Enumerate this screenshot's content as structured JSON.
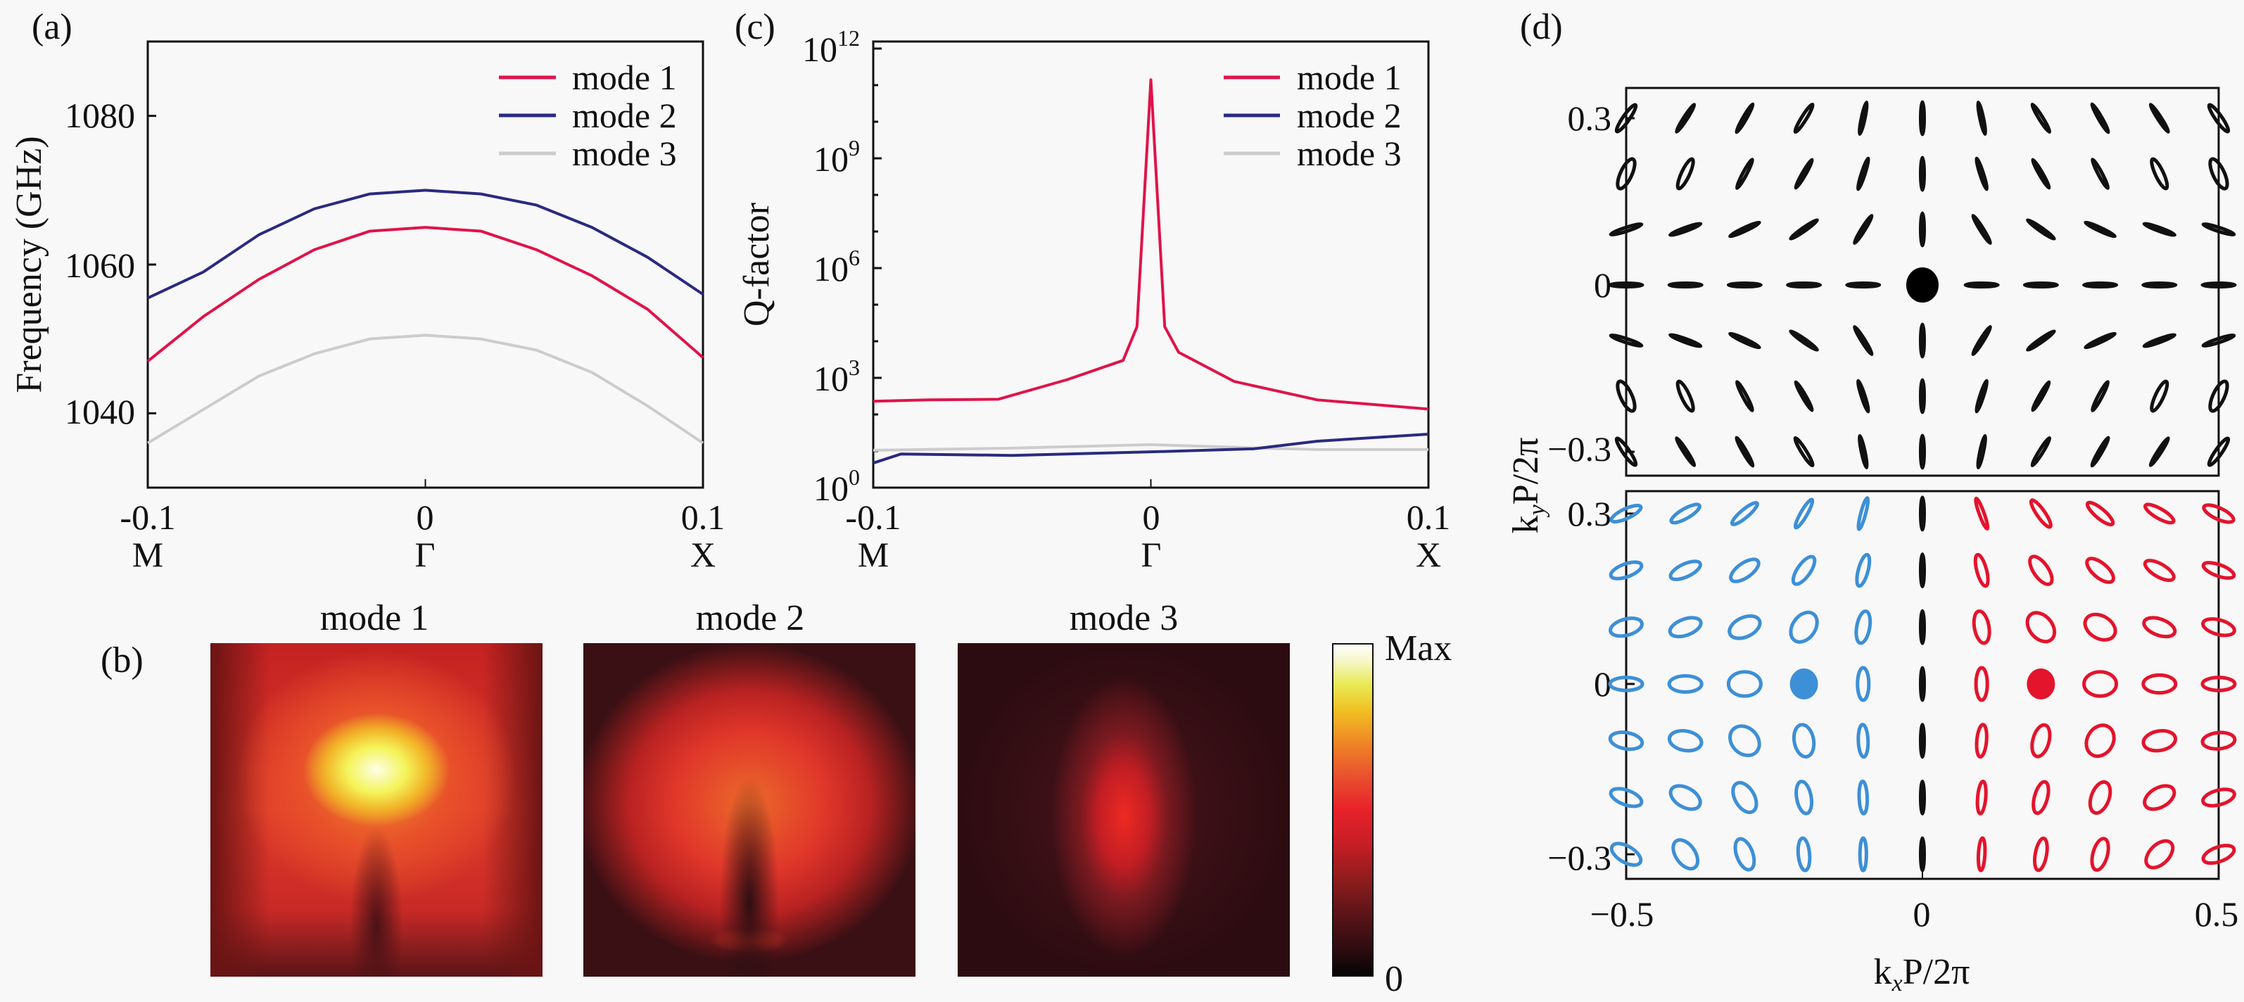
{
  "panel_labels": {
    "a": "(a)",
    "b": "(b)",
    "c": "(c)",
    "d": "(d)"
  },
  "chart_data": [
    {
      "id": "a",
      "type": "line",
      "ylabel": "Frequency (GHz)",
      "xlim": [
        -0.1,
        0.1
      ],
      "ylim": [
        1030,
        1090
      ],
      "xticks": [
        {
          "value": -0.1,
          "label": "-0.1",
          "point": "M"
        },
        {
          "value": 0,
          "label": "0",
          "point": "Γ"
        },
        {
          "value": 0.1,
          "label": "0.1",
          "point": "X"
        }
      ],
      "yticks": [
        {
          "value": 1040,
          "label": "1040"
        },
        {
          "value": 1060,
          "label": "1060"
        },
        {
          "value": 1080,
          "label": "1080"
        }
      ],
      "legend_position": "top-right",
      "x": [
        -0.1,
        -0.08,
        -0.06,
        -0.04,
        -0.02,
        0,
        0.02,
        0.04,
        0.06,
        0.08,
        0.1
      ],
      "series": [
        {
          "name": "mode 1",
          "color": "#e0134a",
          "values": [
            1047,
            1053,
            1058,
            1062,
            1064.5,
            1065,
            1064.5,
            1062,
            1058.5,
            1054,
            1047.5
          ]
        },
        {
          "name": "mode 2",
          "color": "#2a2a80",
          "values": [
            1055.5,
            1059,
            1064,
            1067.5,
            1069.5,
            1070,
            1069.5,
            1068,
            1065,
            1061,
            1056
          ]
        },
        {
          "name": "mode 3",
          "color": "#cccccc",
          "values": [
            1036,
            1040.5,
            1045,
            1048,
            1050,
            1050.5,
            1050,
            1048.5,
            1045.5,
            1041,
            1036
          ]
        }
      ]
    },
    {
      "id": "c",
      "type": "line",
      "ylabel": "Q-factor",
      "yscale": "log",
      "xlim": [
        -0.1,
        0.1
      ],
      "ylim": [
        1,
        1000000000000.0
      ],
      "xticks": [
        {
          "value": -0.1,
          "label": "-0.1",
          "point": "M"
        },
        {
          "value": 0,
          "label": "0",
          "point": "Γ"
        },
        {
          "value": 0.1,
          "label": "0.1",
          "point": "X"
        }
      ],
      "yticks": [
        {
          "value": 1,
          "base": "10",
          "exp": "0"
        },
        {
          "value": 1000.0,
          "base": "10",
          "exp": "3"
        },
        {
          "value": 1000000.0,
          "base": "10",
          "exp": "6"
        },
        {
          "value": 1000000000.0,
          "base": "10",
          "exp": "9"
        },
        {
          "value": 1000000000000.0,
          "base": "10",
          "exp": "12"
        }
      ],
      "legend_position": "top-right",
      "series": [
        {
          "name": "mode 1",
          "color": "#e0134a",
          "x": [
            -0.1,
            -0.08,
            -0.055,
            -0.03,
            -0.01,
            -0.005,
            0,
            0.005,
            0.01,
            0.03,
            0.06,
            0.1
          ],
          "values": [
            230,
            250,
            260,
            900,
            3000,
            25000,
            140000000000.0,
            25000,
            5000,
            800,
            250,
            140
          ]
        },
        {
          "name": "mode 2",
          "color": "#2a2a80",
          "x": [
            -0.1,
            -0.09,
            -0.05,
            0,
            0.037,
            0.06,
            0.1
          ],
          "values": [
            4.7,
            8.3,
            7.6,
            9.5,
            11.5,
            18.6,
            29
          ]
        },
        {
          "name": "mode 3",
          "color": "#cccccc",
          "x": [
            -0.1,
            -0.05,
            0,
            0.04,
            0.06,
            0.1
          ],
          "values": [
            10.5,
            12,
            15,
            12,
            11,
            11
          ]
        }
      ]
    },
    {
      "id": "b",
      "type": "heatmap",
      "titles": [
        "mode 1",
        "mode 2",
        "mode 3"
      ],
      "colorbar": {
        "max_label": "Max",
        "min_label": "0"
      }
    },
    {
      "id": "d",
      "type": "polarization-map",
      "xlabel": {
        "k": "k",
        "sub": "x",
        "rest": "P/2π"
      },
      "ylabel": {
        "k": "k",
        "sub": "y",
        "rest": "P/2π"
      },
      "xlim": [
        -0.5,
        0.5
      ],
      "xticks": [
        {
          "value": -0.5,
          "label": "−0.5"
        },
        {
          "value": 0,
          "label": "0"
        },
        {
          "value": 0.5,
          "label": "0.5"
        }
      ],
      "yticks": [
        {
          "value": 0.3,
          "label": "0.3"
        },
        {
          "value": 0,
          "label": "0"
        },
        {
          "value": -0.3,
          "label": "−0.3"
        }
      ],
      "kx": [
        -0.5,
        -0.4,
        -0.3,
        -0.2,
        -0.1,
        0,
        0.1,
        0.2,
        0.3,
        0.4,
        0.5
      ],
      "ky": [
        0.3,
        0.2,
        0.1,
        0,
        -0.1,
        -0.2,
        -0.3
      ],
      "panels": [
        {
          "position": "top",
          "column_colors": [
            "#111111",
            "#111111",
            "#111111",
            "#111111",
            "#111111",
            "#111111",
            "#111111",
            "#111111",
            "#111111",
            "#111111",
            "#111111"
          ],
          "angles_deg": [
            [
              55,
              57,
              60,
              58,
              78,
              90,
              102,
              122,
              120,
              123,
              125
            ],
            [
              65,
              65,
              62,
              60,
              72,
              90,
              108,
              120,
              118,
              115,
              115
            ],
            [
              18,
              20,
              25,
              35,
              58,
              90,
              122,
              145,
              155,
              160,
              162
            ],
            [
              0,
              0,
              0,
              0,
              0,
              null,
              0,
              0,
              0,
              0,
              0
            ],
            [
              162,
              160,
              155,
              145,
              122,
              90,
              58,
              35,
              25,
              20,
              18
            ],
            [
              115,
              115,
              118,
              120,
              108,
              90,
              72,
              60,
              62,
              65,
              65
            ],
            [
              125,
              123,
              120,
              122,
              102,
              90,
              78,
              58,
              60,
              57,
              55
            ]
          ],
          "ellipticity": [
            [
              0.2,
              0.1,
              0.08,
              0.15,
              0.08,
              0.05,
              0.08,
              0.12,
              0.08,
              0.1,
              0.2
            ],
            [
              0.35,
              0.25,
              0.12,
              0.08,
              0.08,
              0.05,
              0.08,
              0.08,
              0.12,
              0.25,
              0.35
            ],
            [
              0.12,
              0.1,
              0.1,
              0.08,
              0.08,
              0.05,
              0.08,
              0.08,
              0.1,
              0.1,
              0.12
            ],
            [
              0.1,
              0.1,
              0.1,
              0.1,
              0.1,
              null,
              0.1,
              0.1,
              0.1,
              0.1,
              0.1
            ],
            [
              0.12,
              0.1,
              0.1,
              0.08,
              0.08,
              0.05,
              0.08,
              0.08,
              0.1,
              0.1,
              0.12
            ],
            [
              0.35,
              0.25,
              0.12,
              0.08,
              0.08,
              0.05,
              0.08,
              0.08,
              0.12,
              0.25,
              0.35
            ],
            [
              0.2,
              0.1,
              0.08,
              0.15,
              0.08,
              0.05,
              0.08,
              0.12,
              0.08,
              0.1,
              0.2
            ]
          ],
          "singularities": [
            {
              "kx": 0,
              "ky": 0,
              "color": "#000000"
            }
          ]
        },
        {
          "position": "bottom",
          "column_colors": [
            "#3d8fd6",
            "#3d8fd6",
            "#3d8fd6",
            "#3d8fd6",
            "#3d8fd6",
            "#111111",
            "#e3142c",
            "#e3142c",
            "#e3142c",
            "#e3142c",
            "#e3142c"
          ],
          "angles_deg": [
            [
              25,
              30,
              40,
              60,
              75,
              90,
              110,
              125,
              140,
              150,
              155
            ],
            [
              20,
              25,
              35,
              55,
              75,
              90,
              105,
              125,
              140,
              150,
              160
            ],
            [
              15,
              20,
              25,
              55,
              80,
              90,
              100,
              130,
              150,
              160,
              165
            ],
            [
              0,
              0,
              0,
              null,
              90,
              90,
              90,
              null,
              0,
              0,
              0
            ],
            [
              170,
              170,
              135,
              100,
              92,
              90,
              85,
              75,
              60,
              10,
              5
            ],
            [
              160,
              150,
              120,
              100,
              92,
              90,
              85,
              75,
              70,
              30,
              15
            ],
            [
              150,
              125,
              110,
              95,
              90,
              90,
              87,
              80,
              75,
              45,
              20
            ]
          ],
          "ellipticity": [
            [
              0.3,
              0.3,
              0.25,
              0.2,
              0.15,
              0,
              0.15,
              0.25,
              0.3,
              0.3,
              0.35
            ],
            [
              0.4,
              0.4,
              0.45,
              0.4,
              0.3,
              0,
              0.3,
              0.45,
              0.45,
              0.4,
              0.35
            ],
            [
              0.5,
              0.5,
              0.6,
              0.7,
              0.4,
              0,
              0.45,
              0.7,
              0.7,
              0.5,
              0.45
            ],
            [
              0.4,
              0.5,
              0.75,
              null,
              0.35,
              0,
              0.35,
              null,
              0.75,
              0.55,
              0.4
            ],
            [
              0.5,
              0.6,
              0.8,
              0.6,
              0.3,
              0,
              0.3,
              0.5,
              0.8,
              0.6,
              0.5
            ],
            [
              0.45,
              0.6,
              0.6,
              0.45,
              0.25,
              0,
              0.25,
              0.4,
              0.55,
              0.6,
              0.45
            ],
            [
              0.5,
              0.6,
              0.5,
              0.35,
              0.2,
              0,
              0.2,
              0.35,
              0.45,
              0.6,
              0.45
            ]
          ],
          "singularities": [
            {
              "kx": -0.2,
              "ky": 0,
              "color": "#3d8fd6"
            },
            {
              "kx": 0.2,
              "ky": 0,
              "color": "#e3142c"
            }
          ]
        }
      ]
    }
  ]
}
